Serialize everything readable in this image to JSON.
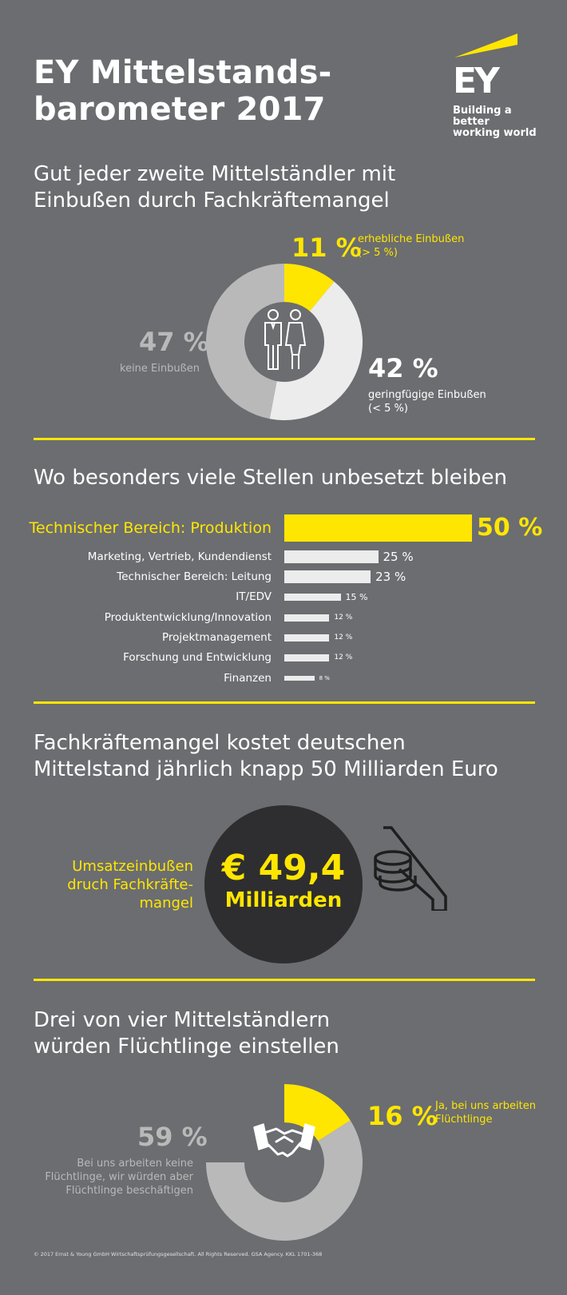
{
  "header": {
    "title_line1": "EY Mittelstands-",
    "title_line2": "barometer 2017",
    "logo_text": "EY",
    "tagline_line1": "Building a better",
    "tagline_line2": "working world"
  },
  "section1": {
    "heading_line1": "Gut jeder zweite Mittelständler mit",
    "heading_line2": "Einbußen durch Fachkräftemangel",
    "icon": "businessman-businesswoman-icon",
    "labels": [
      {
        "pct": "11 %",
        "text_line1": "erhebliche Einbußen",
        "text_line2": "(> 5 %)"
      },
      {
        "pct": "42 %",
        "text_line1": "geringfügige Einbußen",
        "text_line2": "(< 5 %)"
      },
      {
        "pct": "47 %",
        "text_line1": "keine Einbußen",
        "text_line2": ""
      }
    ]
  },
  "section2": {
    "heading": "Wo besonders viele Stellen unbesetzt bleiben",
    "bars": [
      {
        "label": "Technischer Bereich: Produktion",
        "value_label": "50 %"
      },
      {
        "label": "Marketing, Vertrieb, Kundendienst",
        "value_label": "25 %"
      },
      {
        "label": "Technischer Bereich: Leitung",
        "value_label": "23 %"
      },
      {
        "label": "IT/EDV",
        "value_label": "15 %"
      },
      {
        "label": "Produktentwicklung/Innovation",
        "value_label": "12 %"
      },
      {
        "label": "Projektmanagement",
        "value_label": "12 %"
      },
      {
        "label": "Forschung und Entwicklung",
        "value_label": "12 %"
      },
      {
        "label": "Finanzen",
        "value_label": "8 %"
      }
    ]
  },
  "section3": {
    "heading_line1": "Fachkräftemangel kostet deutschen",
    "heading_line2": "Mittelstand jährlich knapp 50 Milliarden Euro",
    "side_label_line1": "Umsatzeinbußen",
    "side_label_line2": "druch Fachkräfte-",
    "side_label_line3": "mangel",
    "amount": "€ 49,4",
    "unit": "Milliarden",
    "icon": "coins-falling-icon"
  },
  "section4": {
    "heading_line1": "Drei von vier Mittelständlern",
    "heading_line2": "würden Flüchtlinge einstellen",
    "icon": "handshake-icon",
    "yes": {
      "pct": "16 %",
      "text_line1": "Ja, bei uns arbeiten",
      "text_line2": "Flüchtlinge"
    },
    "no": {
      "pct": "59 %",
      "text_line1": "Bei uns arbeiten keine",
      "text_line2": "Flüchtlinge, wir würden aber",
      "text_line3": "Flüchtlinge beschäftigen"
    }
  },
  "footer": {
    "text": "© 2017 Ernst & Young GmbH Wirtschaftsprüfungsgesellschaft. All Rights Reserved. GSA Agency. KKL 1701-368"
  },
  "colors": {
    "background": "#6b6d70",
    "yellow": "#ffe600",
    "light_grey": "#ececec",
    "mid_grey": "#b9b9b9",
    "dark_grey": "#2e2e30"
  },
  "chart_data": [
    {
      "type": "pie",
      "categories": [
        "erhebliche Einbußen (> 5 %)",
        "geringfügige Einbußen (< 5 %)",
        "keine Einbußen"
      ],
      "values": [
        11,
        42,
        47
      ],
      "title": "Gut jeder zweite Mittelständler mit Einbußen durch Fachkräftemangel"
    },
    {
      "type": "bar",
      "orientation": "horizontal",
      "categories": [
        "Technischer Bereich: Produktion",
        "Marketing, Vertrieb, Kundendienst",
        "Technischer Bereich: Leitung",
        "IT/EDV",
        "Produktentwicklung/Innovation",
        "Projektmanagement",
        "Forschung und Entwicklung",
        "Finanzen"
      ],
      "values": [
        50,
        25,
        23,
        15,
        12,
        12,
        12,
        8
      ],
      "title": "Wo besonders viele Stellen unbesetzt bleiben"
    },
    {
      "type": "pie",
      "categories": [
        "Ja, bei uns arbeiten Flüchtlinge",
        "Bei uns arbeiten keine Flüchtlinge, wir würden aber Flüchtlinge beschäftigen"
      ],
      "values": [
        16,
        59
      ],
      "title": "Drei von vier Mittelständlern würden Flüchtlinge einstellen"
    }
  ]
}
